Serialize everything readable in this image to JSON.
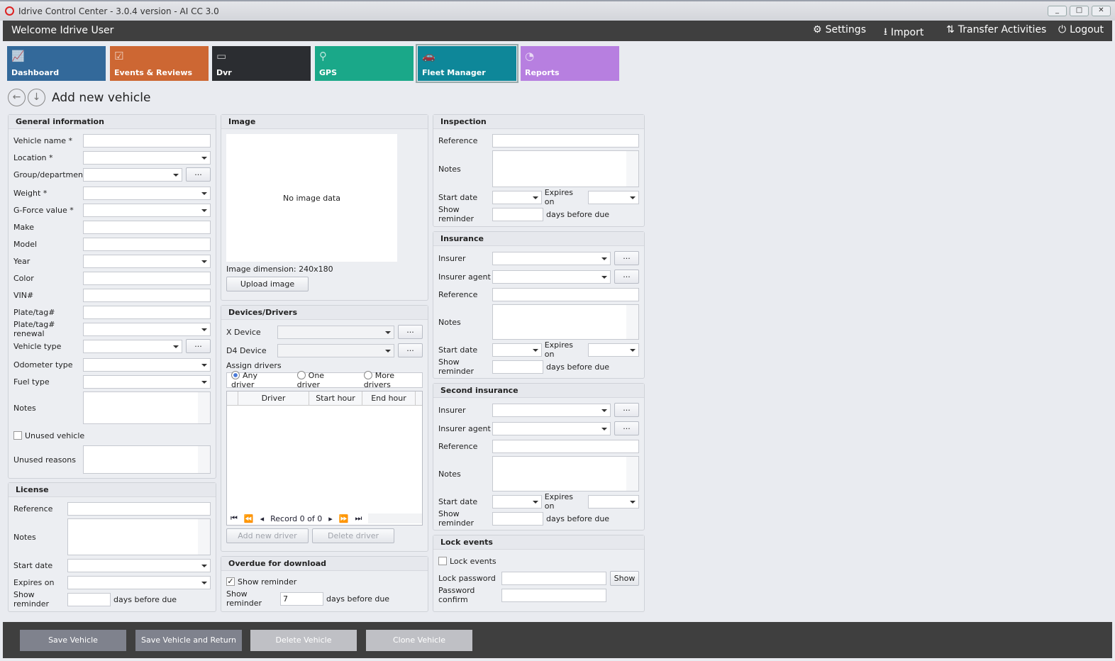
{
  "window": {
    "title": "Idrive Control Center - 3.0.4 version - AI CC 3.0",
    "min": "_",
    "max": "□",
    "close": "✕"
  },
  "topnav": {
    "welcome": "Welcome Idrive User",
    "settings": "Settings",
    "import": "Import",
    "transfer": "Transfer Activities",
    "logout": "Logout"
  },
  "tiles": [
    {
      "label": "Dashboard",
      "color": "#33699a"
    },
    {
      "label": "Events & Reviews",
      "color": "#cd6733"
    },
    {
      "label": "Dvr",
      "color": "#2b2d31"
    },
    {
      "label": "GPS",
      "color": "#1aa889"
    },
    {
      "label": "Fleet Manager",
      "color": "#0e8799"
    },
    {
      "label": "Reports",
      "color": "#b77fe0"
    }
  ],
  "page": {
    "title": "Add new vehicle"
  },
  "general": {
    "title": "General information",
    "vehicle_name": "Vehicle name *",
    "location": "Location *",
    "group": "Group/department",
    "weight": "Weight *",
    "gforce": "G-Force value *",
    "make": "Make",
    "model": "Model",
    "year": "Year",
    "color": "Color",
    "vin": "VIN#",
    "plate": "Plate/tag#",
    "plate_renewal": "Plate/tag# renewal",
    "vehicle_type": "Vehicle type",
    "odometer": "Odometer type",
    "fuel": "Fuel type",
    "notes": "Notes",
    "unused": "Unused vehicle",
    "unused_reasons": "Unused reasons",
    "dots": "..."
  },
  "license": {
    "title": "License",
    "reference": "Reference",
    "notes": "Notes",
    "start": "Start date",
    "expires": "Expires on",
    "reminder": "Show reminder",
    "days": "days before due"
  },
  "image": {
    "title": "Image",
    "empty": "No image data",
    "dimension": "Image dimension:",
    "dimension_value": "240x180",
    "upload": "Upload image"
  },
  "devices": {
    "title": "Devices/Drivers",
    "x_device": "X Device",
    "d4_device": "D4 Device",
    "assign": "Assign drivers",
    "any": "Any driver",
    "one": "One driver",
    "more": "More drivers",
    "columns": [
      "Driver",
      "Start hour",
      "End hour"
    ],
    "record": "Record 0 of 0",
    "add": "Add new driver",
    "delete": "Delete driver"
  },
  "overdue": {
    "title": "Overdue for download",
    "show": "Show reminder",
    "reminder": "Show reminder",
    "value": "7",
    "days": "days before due"
  },
  "inspection": {
    "title": "Inspection",
    "reference": "Reference",
    "notes": "Notes",
    "start": "Start date",
    "expires": "Expires on",
    "reminder": "Show reminder",
    "days": "days before due"
  },
  "insurance": {
    "title": "Insurance",
    "insurer": "Insurer",
    "agent": "Insurer agent",
    "reference": "Reference",
    "notes": "Notes",
    "start": "Start date",
    "expires": "Expires on",
    "reminder": "Show reminder",
    "days": "days before due"
  },
  "insurance2": {
    "title": "Second insurance",
    "insurer": "Insurer",
    "agent": "Insurer agent",
    "reference": "Reference",
    "notes": "Notes",
    "start": "Start date",
    "expires": "Expires on",
    "reminder": "Show reminder",
    "days": "days before due"
  },
  "lock": {
    "title": "Lock events",
    "check": "Lock events",
    "password": "Lock password",
    "show": "Show",
    "confirm": "Password confirm"
  },
  "actions": {
    "save": "Save Vehicle",
    "save_return": "Save Vehicle and Return",
    "delete": "Delete Vehicle",
    "clone": "Clone Vehicle"
  }
}
